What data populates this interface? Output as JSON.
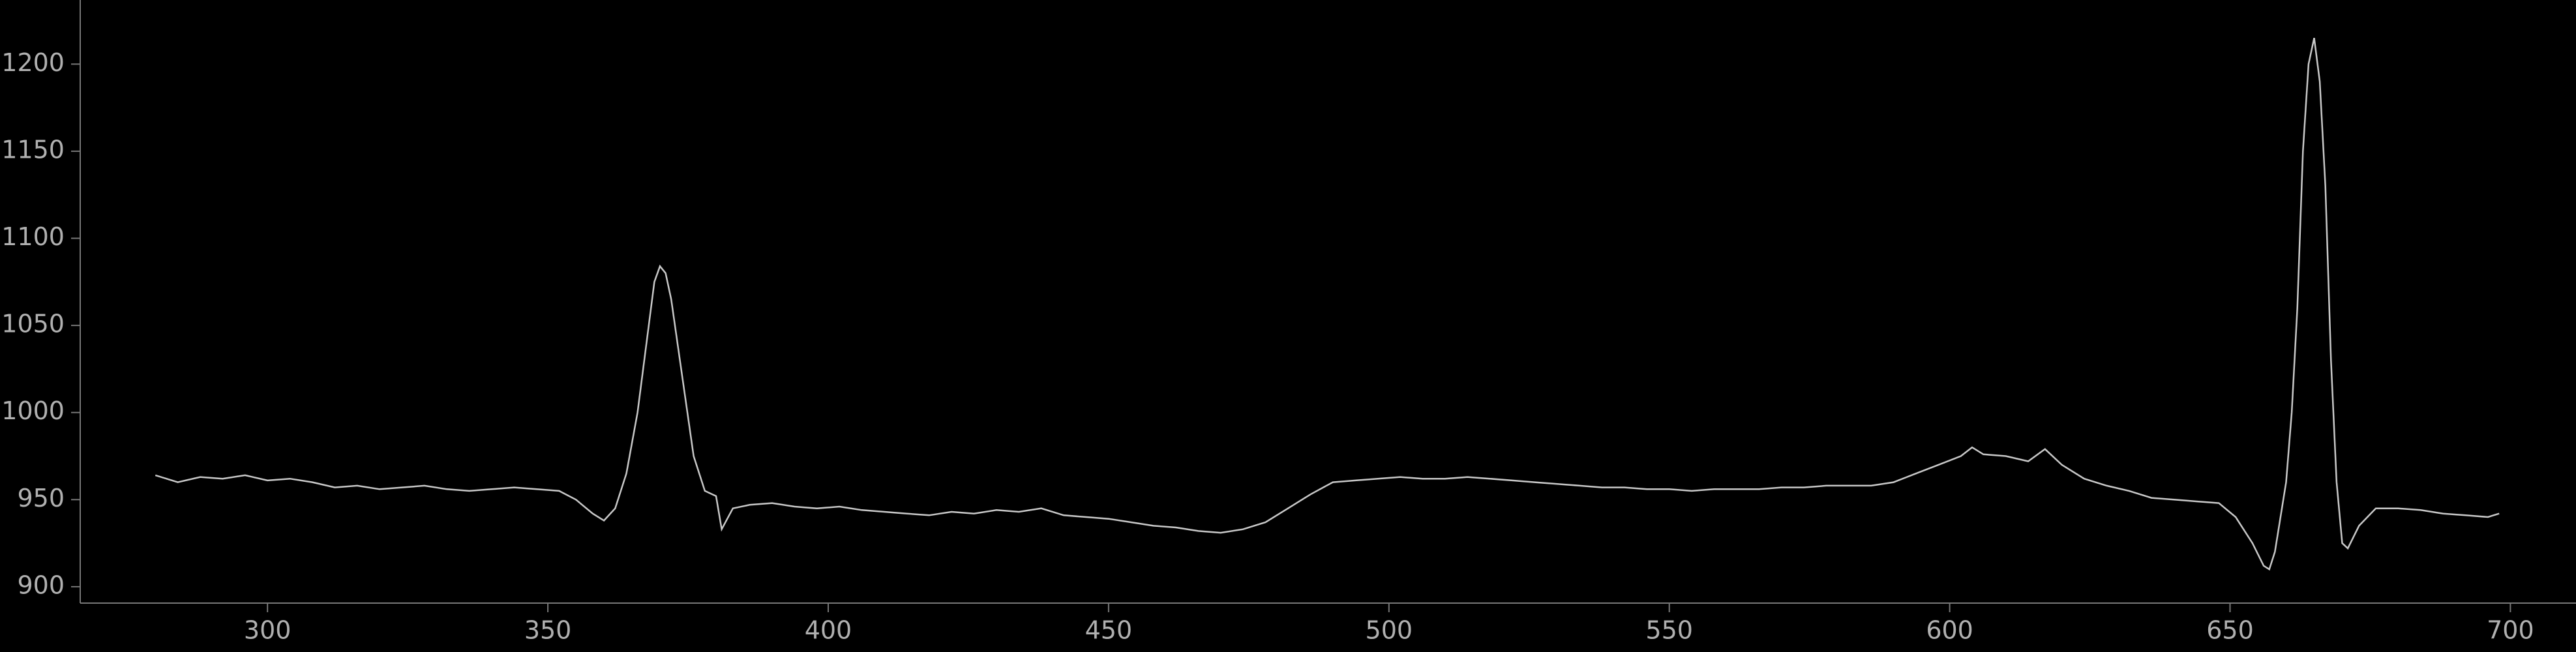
{
  "chart_data": {
    "type": "line",
    "color": "#c8c8c8",
    "x": [
      280,
      284,
      288,
      292,
      296,
      300,
      304,
      308,
      312,
      316,
      320,
      324,
      328,
      332,
      336,
      340,
      344,
      348,
      352,
      355,
      358,
      360,
      362,
      364,
      366,
      368,
      369,
      370,
      371,
      372,
      374,
      376,
      378,
      380,
      381,
      383,
      386,
      390,
      394,
      398,
      402,
      406,
      410,
      414,
      418,
      422,
      426,
      430,
      434,
      438,
      442,
      446,
      450,
      454,
      458,
      462,
      466,
      470,
      474,
      478,
      482,
      486,
      490,
      494,
      498,
      502,
      506,
      510,
      514,
      518,
      522,
      526,
      530,
      534,
      538,
      542,
      546,
      550,
      554,
      558,
      562,
      566,
      570,
      574,
      578,
      582,
      586,
      590,
      594,
      598,
      602,
      604,
      606,
      610,
      614,
      617,
      620,
      624,
      628,
      632,
      636,
      640,
      644,
      648,
      651,
      654,
      656,
      657,
      658,
      660,
      661,
      662,
      663,
      664,
      665,
      666,
      667,
      668,
      669,
      670,
      671,
      673,
      676,
      680,
      684,
      688,
      692,
      696,
      698
    ],
    "values": [
      964,
      960,
      963,
      962,
      964,
      961,
      962,
      960,
      957,
      958,
      956,
      957,
      958,
      956,
      955,
      956,
      957,
      956,
      955,
      950,
      942,
      938,
      945,
      965,
      1000,
      1050,
      1075,
      1084,
      1080,
      1065,
      1020,
      975,
      955,
      952,
      933,
      945,
      947,
      948,
      946,
      945,
      946,
      944,
      943,
      942,
      941,
      943,
      942,
      944,
      943,
      945,
      941,
      940,
      939,
      937,
      935,
      934,
      932,
      931,
      933,
      937,
      945,
      953,
      960,
      961,
      962,
      963,
      962,
      962,
      963,
      962,
      961,
      960,
      959,
      958,
      957,
      957,
      956,
      956,
      955,
      956,
      956,
      956,
      957,
      957,
      958,
      958,
      958,
      960,
      965,
      970,
      975,
      980,
      976,
      975,
      972,
      979,
      970,
      962,
      958,
      955,
      951,
      950,
      949,
      948,
      940,
      925,
      912,
      910,
      920,
      960,
      1000,
      1060,
      1150,
      1200,
      1215,
      1190,
      1130,
      1030,
      960,
      925,
      922,
      935,
      945,
      945,
      944,
      942,
      941,
      940,
      942
    ],
    "xlim": [
      266.6,
      711.7
    ],
    "ylim": [
      890.6,
      1236.8
    ],
    "xticks": [
      300,
      350,
      400,
      450,
      500,
      550,
      600,
      650,
      700
    ],
    "yticks": [
      900,
      950,
      1000,
      1050,
      1100,
      1150,
      1200
    ]
  }
}
